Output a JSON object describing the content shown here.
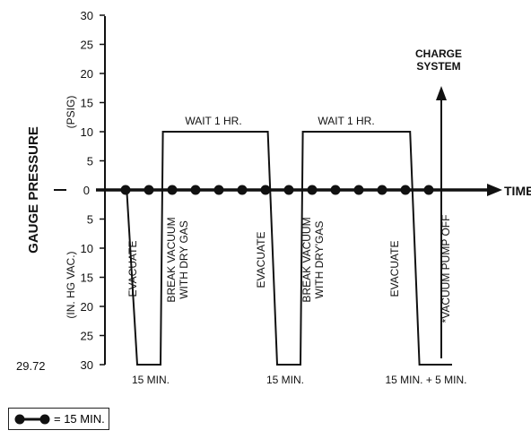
{
  "chart_data": {
    "type": "line",
    "ylabel": "GAUGE PRESSURE",
    "ylabel_upper_unit": "(PSIG)",
    "ylabel_lower_unit": "(IN. HG VAC.)",
    "xlabel": "TIME",
    "upper_ticks": [
      "30",
      "25",
      "20",
      "15",
      "10",
      "5"
    ],
    "zero_tick": "0",
    "lower_ticks": [
      "5",
      "10",
      "15",
      "20",
      "25",
      "30"
    ],
    "bottom_value_label": "29.72",
    "series": [
      {
        "values_note": "pressure profile; positive = psig, negative = in. Hg vacuum",
        "x": [
          0,
          0.05,
          0.5,
          1.5,
          1.6,
          6.1,
          6.5,
          7.5,
          7.6,
          12.2,
          12.6,
          14.0
        ],
        "y": [
          0,
          0,
          -30,
          -30,
          10,
          10,
          -30,
          -30,
          10,
          10,
          -30,
          -30
        ]
      }
    ],
    "pump_markers_count": 14,
    "annotations": {
      "evacuate": "EVACUATE",
      "break_line1": "BREAK VACUUM",
      "break_line2": "WITH DRY GAS",
      "break2_line2": "WITH DRY'GAS",
      "wait": "WAIT 1 HR.",
      "min15": "15 MIN.",
      "min15plus5": "15 MIN. + 5 MIN.",
      "vacuum_off": "*VACUUM PUMP OFF",
      "charge_line1": "CHARGE",
      "charge_line2": "SYSTEM"
    },
    "legend_label": "= 15 MIN."
  }
}
